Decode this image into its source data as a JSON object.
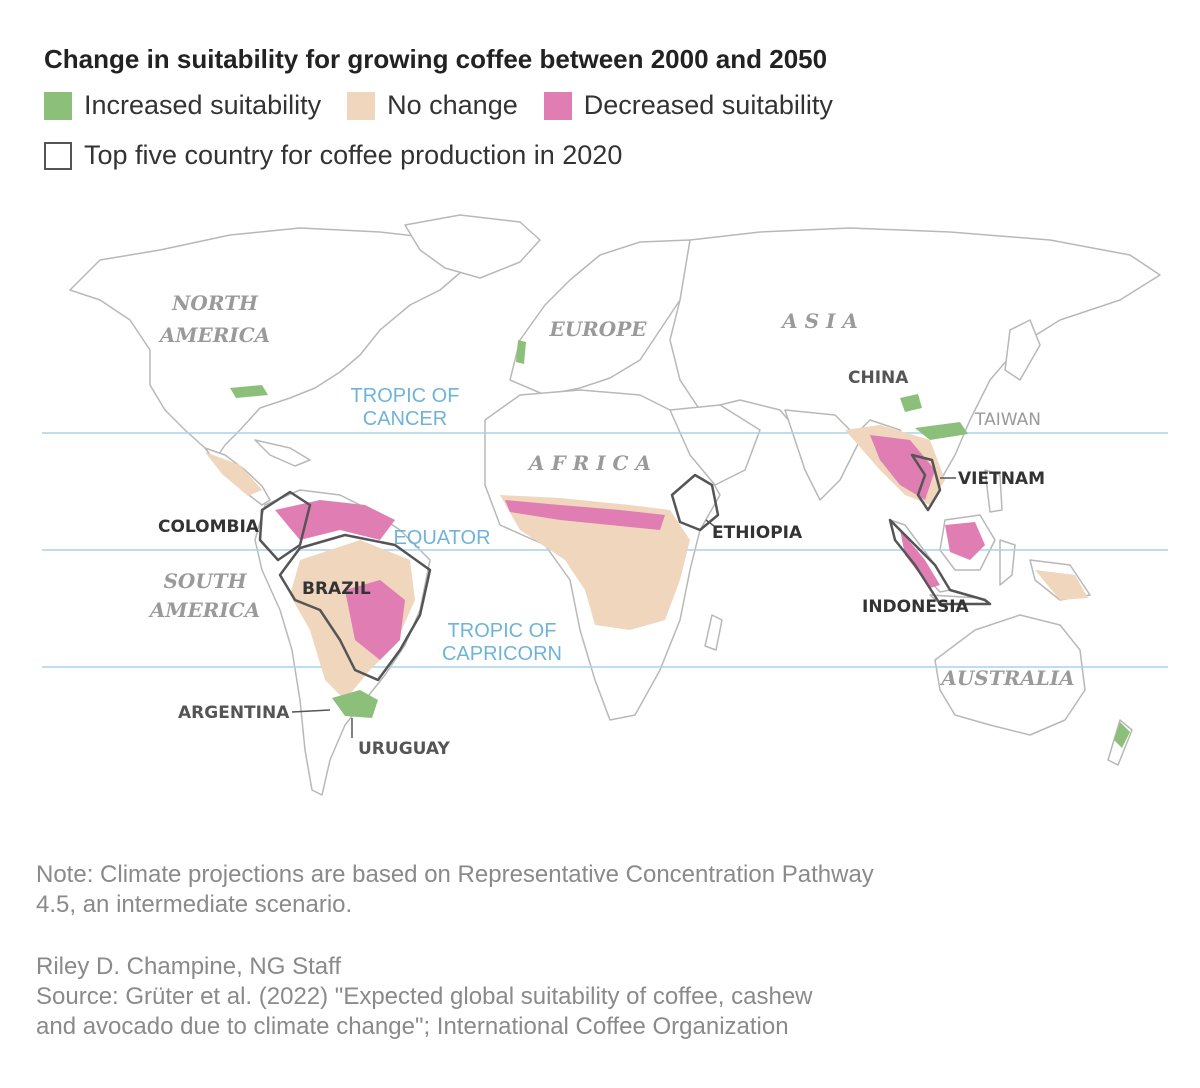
{
  "title": "Change in suitability for growing coffee between 2000 and 2050",
  "legend": {
    "increased": "Increased suitability",
    "no_change": "No change",
    "decreased": "Decreased suitability",
    "top_five": "Top five country for coffee production in 2020"
  },
  "colors": {
    "increased": "#8cc07a",
    "no_change": "#efd6bd",
    "decreased": "#e07db2",
    "land_outline": "#b8b8b8",
    "lat_line": "#a9d3e8",
    "lat_label": "#6fb4d8",
    "continent_label": "#9a9a9a",
    "country_label": "#333333"
  },
  "continents": {
    "north_america_1": "NORTH",
    "north_america_2": "AMERICA",
    "south_america_1": "SOUTH",
    "south_america_2": "AMERICA",
    "europe": "EUROPE",
    "asia": "A S I A",
    "africa": "A F R I C A",
    "australia": "AUSTRALIA"
  },
  "latitudes": {
    "cancer_1": "TROPIC OF",
    "cancer_2": "CANCER",
    "equator": "EQUATOR",
    "capricorn_1": "TROPIC OF",
    "capricorn_2": "CAPRICORN"
  },
  "countries": {
    "china": "CHINA",
    "taiwan": "TAIWAN",
    "vietnam": "VIETNAM",
    "colombia": "COLOMBIA",
    "ethiopia": "ETHIOPIA",
    "brazil": "BRAZIL",
    "indonesia": "INDONESIA",
    "argentina": "ARGENTINA",
    "uruguay": "URUGUAY"
  },
  "note": {
    "line1": "Note: Climate projections are based on Representative Concentration Pathway",
    "line2": "4.5, an intermediate scenario."
  },
  "credit": {
    "line1": "Riley D. Champine, NG Staff",
    "line2": "Source: Grüter et al. (2022) \"Expected global suitability of coffee, cashew",
    "line3": "and avocado due to climate change\"; International Coffee Organization"
  }
}
